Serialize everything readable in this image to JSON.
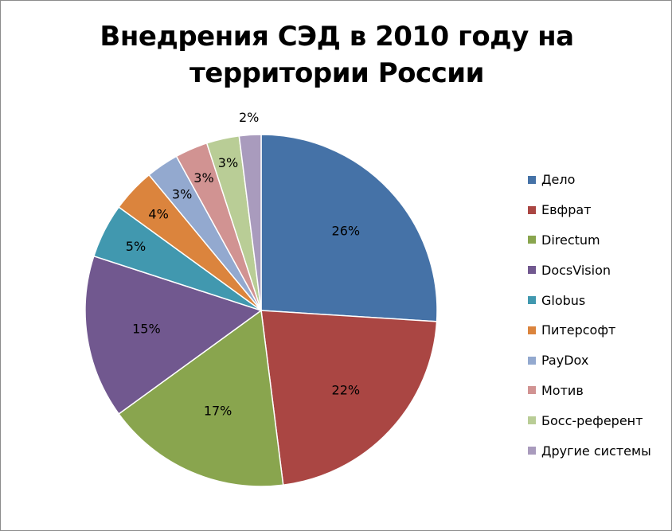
{
  "chart_data": {
    "type": "pie",
    "title_lines": [
      "Внедрения СЭД в 2010 году на",
      "территории России"
    ],
    "categories": [
      "Дело",
      "Евфрат",
      "Directum",
      "DocsVision",
      "Globus",
      "Питерсофт",
      "PayDox",
      "Мотив",
      "Босс-референт",
      "Другие системы"
    ],
    "values": [
      26,
      22,
      17,
      15,
      5,
      4,
      3,
      3,
      3,
      2
    ],
    "labels": [
      "26%",
      "22%",
      "17%",
      "15%",
      "5%",
      "4%",
      "3%",
      "3%",
      "3%",
      "2%"
    ],
    "colors": [
      "#4572A7",
      "#AA4643",
      "#89A54E",
      "#71588F",
      "#4198AF",
      "#DB843D",
      "#93A9CF",
      "#D19392",
      "#B9CD96",
      "#A99BBD"
    ],
    "legend_position": "right"
  }
}
